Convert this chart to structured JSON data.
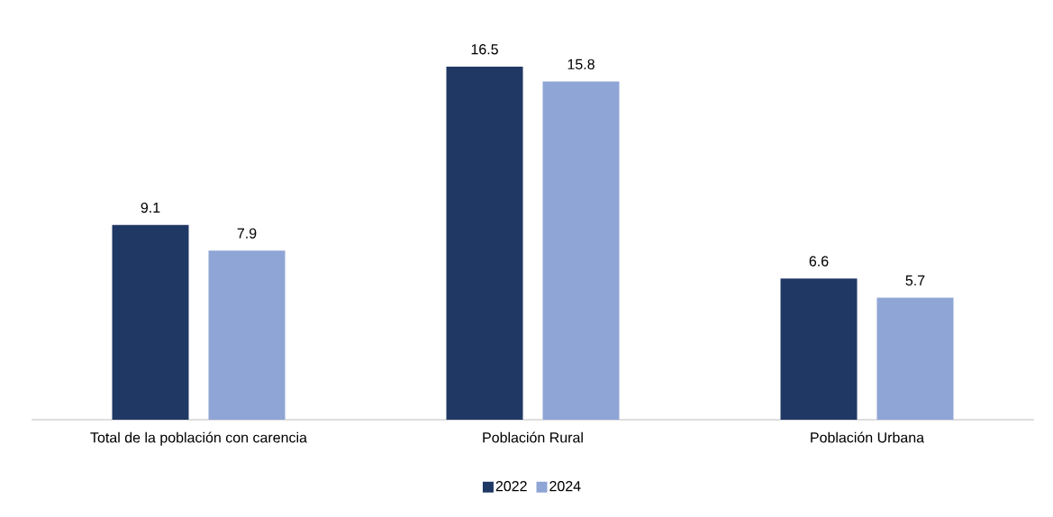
{
  "chart_data": {
    "type": "bar",
    "categories": [
      "Total de la población con carencia",
      "Población Rural",
      "Población Urbana"
    ],
    "series": [
      {
        "name": "2022",
        "color": "#203864",
        "values": [
          9.1,
          16.5,
          6.6
        ]
      },
      {
        "name": "2024",
        "color": "#8fa5d5",
        "values": [
          7.9,
          15.8,
          5.7
        ]
      }
    ],
    "data_labels": true,
    "legend": "bottom"
  }
}
